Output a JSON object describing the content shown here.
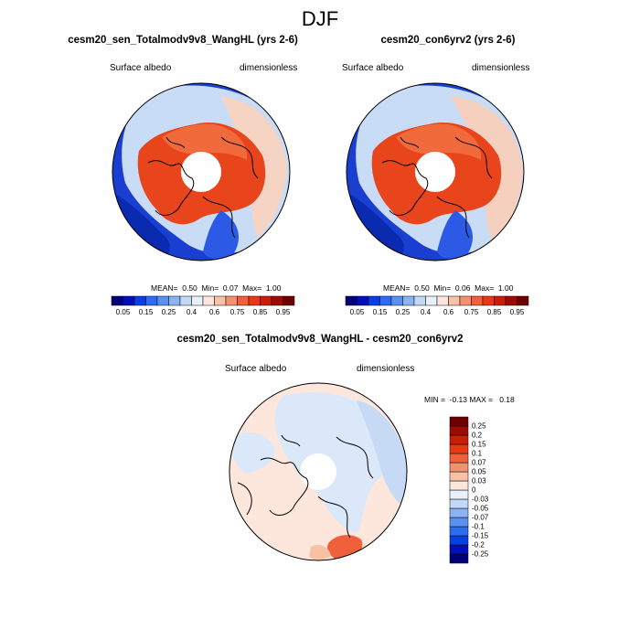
{
  "title": "DJF",
  "panels": [
    {
      "title": "cesm20_sen_Totalmodv9v8_WangHL (yrs 2-6)",
      "left_label": "Surface albedo",
      "right_label": "dimensionless",
      "stats": "MEAN=  0.50  Min=  0.07  Max=  1.00"
    },
    {
      "title": "cesm20_con6yrv2 (yrs 2-6)",
      "left_label": "Surface albedo",
      "right_label": "dimensionless",
      "stats": "MEAN=  0.50  Min=  0.06  Max=  1.00"
    }
  ],
  "diff_panel": {
    "title": "cesm20_sen_Totalmodv9v8_WangHL - cesm20_con6yrv2",
    "left_label": "Surface albedo",
    "right_label": "dimensionless",
    "stats": "MIN =  -0.13 MAX =   0.18"
  },
  "colorbar_abs": {
    "colors": [
      "#00007a",
      "#0010b8",
      "#0540e0",
      "#2c6cf0",
      "#5a90f0",
      "#8cb2f2",
      "#c2d8f6",
      "#e8f0fc",
      "#fde6dc",
      "#f8c0a4",
      "#f49070",
      "#f0603a",
      "#e63a14",
      "#c82008",
      "#9c0c04",
      "#6a0000"
    ],
    "tick_labels": [
      "0.05",
      "0.15",
      "0.25",
      "0.4",
      "0.6",
      "0.75",
      "0.85",
      "0.95"
    ]
  },
  "colorbar_diff": {
    "colors": [
      "#00007a",
      "#0010b8",
      "#0540e0",
      "#2c6cf0",
      "#5a90f0",
      "#8cb2f2",
      "#c2d8f6",
      "#e8f0fc",
      "#fde6dc",
      "#f8c0a4",
      "#f49070",
      "#f0603a",
      "#e63a14",
      "#c82008",
      "#9c0c04",
      "#6a0000"
    ],
    "tick_labels": [
      "0.25",
      "0.2",
      "0.15",
      "0.1",
      "0.07",
      "0.05",
      "0.03",
      "0",
      "-0.03",
      "-0.05",
      "-0.07",
      "-0.1",
      "-0.15",
      "-0.2",
      "-0.25"
    ]
  }
}
